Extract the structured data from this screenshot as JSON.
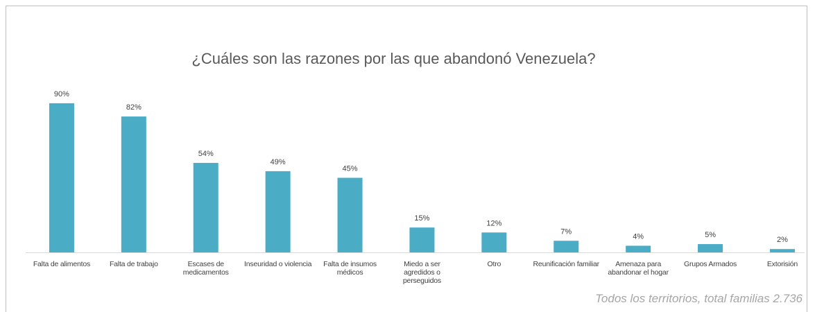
{
  "chart_data": {
    "type": "bar",
    "title": "¿Cuáles son las razones por las que abandonó Venezuela?",
    "categories": [
      "Falta de alimentos",
      "Falta de trabajo",
      "Escases de\nmedicamentos",
      "Inseuridad o violencia",
      "Falta de insumos\nmédicos",
      "Miedo a ser\nagredidos o\nperseguidos",
      "Otro",
      "Reunificación familiar",
      "Amenaza para\nabandonar el hogar",
      "Grupos Armados",
      "Extorisión"
    ],
    "values": [
      90,
      82,
      54,
      49,
      45,
      15,
      12,
      7,
      4,
      5,
      2
    ],
    "value_labels": [
      "90%",
      "82%",
      "54%",
      "49%",
      "45%",
      "15%",
      "12%",
      "7%",
      "4%",
      "5%",
      "2%"
    ],
    "color": "#4bacc6",
    "annotation": "Todos los territorios, total familias  2.736"
  }
}
